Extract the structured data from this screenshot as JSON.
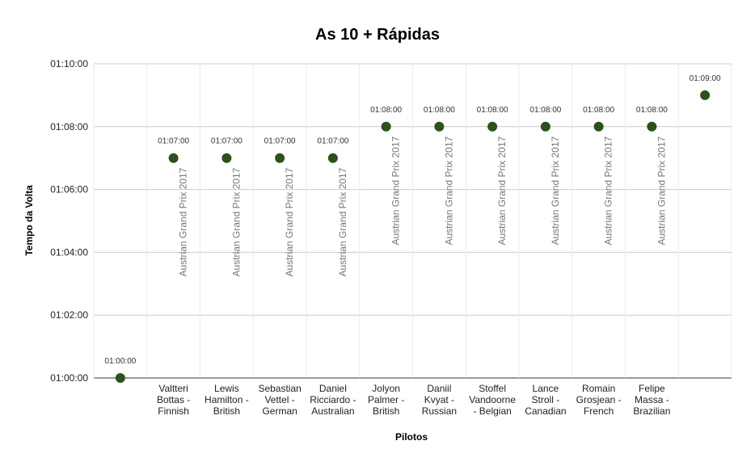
{
  "chart_data": {
    "type": "scatter",
    "title": "As 10 + Rápidas",
    "xlabel": "Pilotos",
    "ylabel": "Tempo da Volta",
    "yticks": [
      "01:00:00",
      "01:02:00",
      "01:04:00",
      "01:06:00",
      "01:08:00",
      "01:10:00"
    ],
    "ylim": [
      "01:00:00",
      "01:10:00"
    ],
    "grid": true,
    "marker_color": "#2b5219",
    "points": [
      {
        "category": "",
        "y": "01:00:00",
        "label": "01:00:00",
        "note": ""
      },
      {
        "category": "Valtteri Bottas - Finnish",
        "y": "01:07:00",
        "label": "01:07:00",
        "note": "Austrian Grand Prix 2017"
      },
      {
        "category": "Lewis Hamilton - British",
        "y": "01:07:00",
        "label": "01:07:00",
        "note": "Austrian Grand Prix 2017"
      },
      {
        "category": "Sebastian Vettel - German",
        "y": "01:07:00",
        "label": "01:07:00",
        "note": "Austrian Grand Prix 2017"
      },
      {
        "category": "Daniel Ricciardo - Australian",
        "y": "01:07:00",
        "label": "01:07:00",
        "note": "Austrian Grand Prix 2017"
      },
      {
        "category": "Jolyon Palmer - British",
        "y": "01:08:00",
        "label": "01:08:00",
        "note": "Austrian Grand Prix 2017"
      },
      {
        "category": "Daniil Kvyat - Russian",
        "y": "01:08:00",
        "label": "01:08:00",
        "note": "Austrian Grand Prix 2017"
      },
      {
        "category": "Stoffel Vandoorne - Belgian",
        "y": "01:08:00",
        "label": "01:08:00",
        "note": "Austrian Grand Prix 2017"
      },
      {
        "category": "Lance Stroll - Canadian",
        "y": "01:08:00",
        "label": "01:08:00",
        "note": "Austrian Grand Prix 2017"
      },
      {
        "category": "Romain Grosjean - French",
        "y": "01:08:00",
        "label": "01:08:00",
        "note": "Austrian Grand Prix 2017"
      },
      {
        "category": "Felipe Massa - Brazilian",
        "y": "01:08:00",
        "label": "01:08:00",
        "note": "Austrian Grand Prix 2017"
      },
      {
        "category": "",
        "y": "01:09:00",
        "label": "01:09:00",
        "note": ""
      }
    ]
  }
}
